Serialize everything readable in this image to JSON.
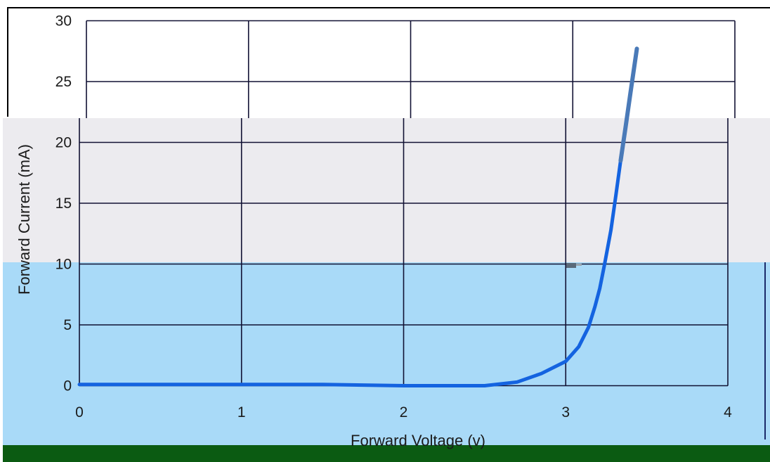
{
  "chart_data": {
    "type": "line",
    "xlabel": "Forward Voltage (v)",
    "ylabel": "Forward Current (mA)",
    "xlim": [
      0,
      4
    ],
    "ylim": [
      0,
      30
    ],
    "x_ticks": [
      "0",
      "1",
      "2",
      "3",
      "4"
    ],
    "y_ticks": [
      "0",
      "5",
      "10",
      "15",
      "20",
      "25",
      "30"
    ],
    "grid": true,
    "legend": "none",
    "series": [
      {
        "color": "#1463e0",
        "x": [
          0,
          0.5,
          1.0,
          1.5,
          2.0,
          2.5,
          2.7,
          2.85,
          3.0,
          3.08,
          3.14,
          3.18,
          3.21,
          3.24,
          3.27,
          3.3,
          3.33,
          3.36,
          3.39,
          3.43
        ],
        "y": [
          0.1,
          0.1,
          0.1,
          0.1,
          0.0,
          0.0,
          0.3,
          1.0,
          2.0,
          3.2,
          4.8,
          6.5,
          8.0,
          10.0,
          12.8,
          15.6,
          18.5,
          21.2,
          24.0,
          27.7
        ]
      }
    ]
  },
  "colors": {
    "panel_upper": "#ffffff",
    "panel_mid": "#ecebef",
    "panel_lower": "#a9daf8",
    "footer_bar": "#0b5b12",
    "grid": "#111133",
    "curve_upper": "#4a7ab8",
    "curve_lower": "#1463e0"
  }
}
